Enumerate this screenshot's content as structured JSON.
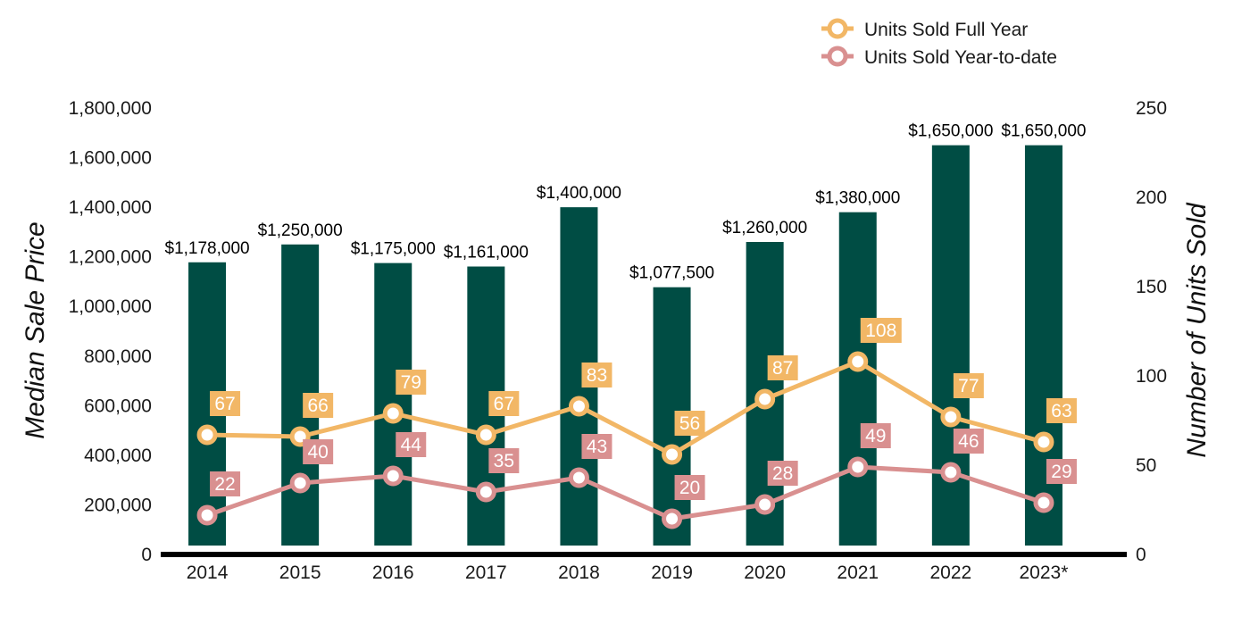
{
  "chart_data": {
    "type": "bar",
    "categories": [
      "2014",
      "2015",
      "2016",
      "2017",
      "2018",
      "2019",
      "2020",
      "2021",
      "2022",
      "2023*"
    ],
    "bar_series": {
      "values": [
        1178000,
        1250000,
        1175000,
        1161000,
        1400000,
        1077500,
        1260000,
        1380000,
        1650000,
        1650000
      ],
      "labels": [
        "$1,178,000",
        "$1,250,000",
        "$1,175,000",
        "$1,161,000",
        "$1,400,000",
        "$1,077,500",
        "$1,260,000",
        "$1,380,000",
        "$1,650,000",
        "$1,650,000"
      ],
      "color": "#004d44",
      "axis": "left"
    },
    "line_series": [
      {
        "name": "Units Sold Full Year",
        "type": "line",
        "axis": "right",
        "color": "#f2b766",
        "values": [
          67,
          66,
          79,
          67,
          83,
          56,
          87,
          108,
          77,
          63
        ]
      },
      {
        "name": "Units Sold Year-to-date",
        "type": "line",
        "axis": "right",
        "color": "#d99090",
        "values": [
          22,
          40,
          44,
          35,
          43,
          20,
          28,
          49,
          46,
          29
        ]
      }
    ],
    "ylabel": "Median Sale Price",
    "y2label": "Number of Units Sold",
    "ylim": [
      0,
      1800000
    ],
    "y2lim": [
      0,
      250
    ],
    "yticks": [
      "0",
      "200,000",
      "400,000",
      "600,000",
      "800,000",
      "1,000,000",
      "1,200,000",
      "1,400,000",
      "1,600,000",
      "1,800,000"
    ],
    "y2ticks": [
      "0",
      "50",
      "100",
      "150",
      "200",
      "250"
    ],
    "legend_position": "top-right",
    "grid": false
  }
}
